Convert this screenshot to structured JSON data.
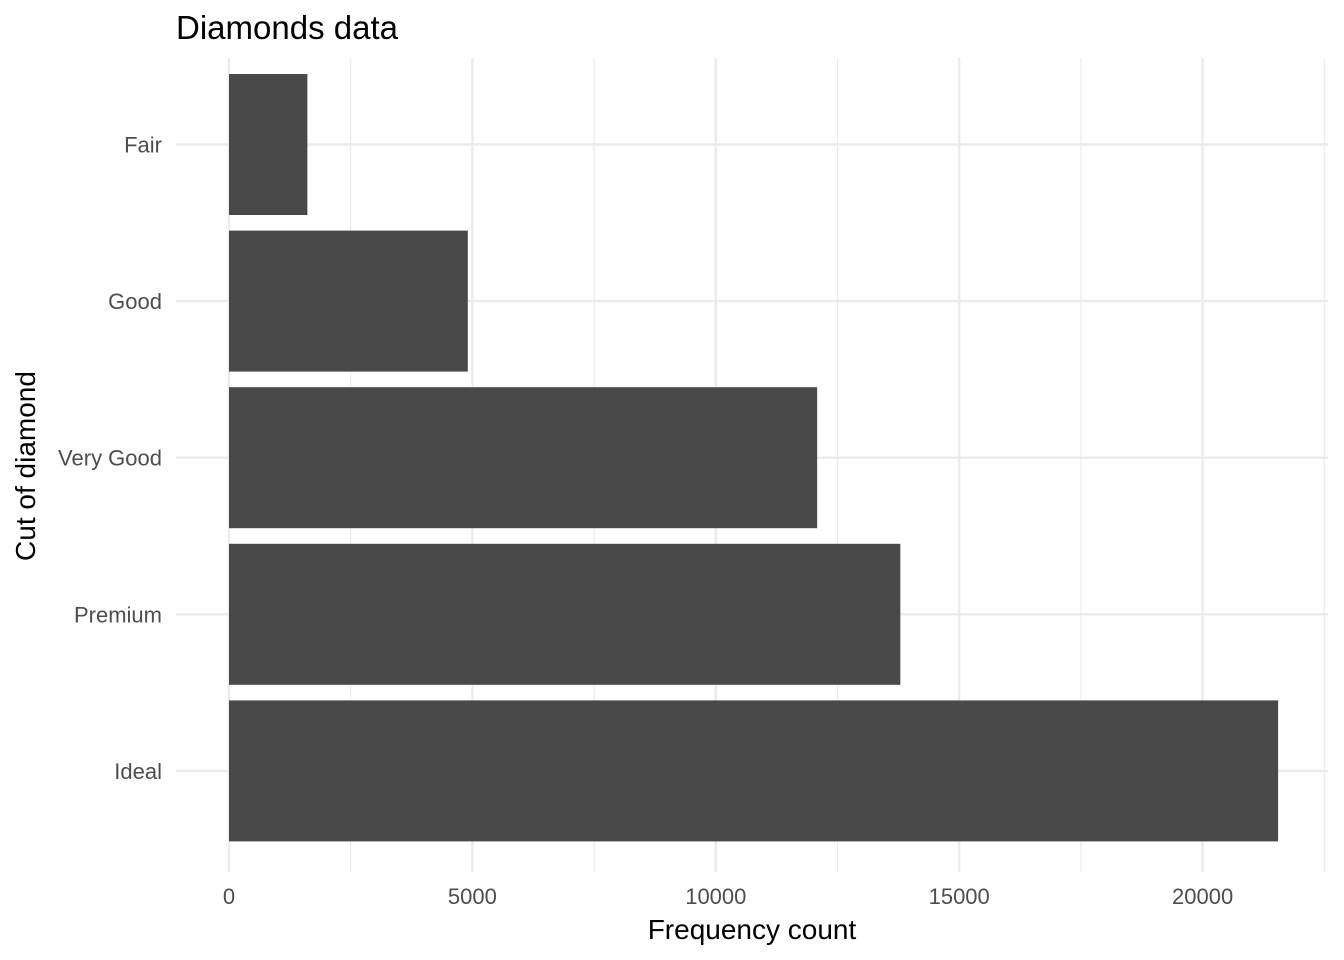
{
  "chart_data": {
    "type": "bar",
    "orientation": "horizontal",
    "title": "Diamonds data",
    "xlabel": "Frequency count",
    "ylabel": "Cut of diamond",
    "categories": [
      "Fair",
      "Good",
      "Very Good",
      "Premium",
      "Ideal"
    ],
    "values": [
      1610,
      4906,
      12082,
      13791,
      21551
    ],
    "xlim": [
      0,
      22600
    ],
    "x_ticks": [
      0,
      5000,
      10000,
      15000,
      20000
    ],
    "x_tick_labels": [
      "0",
      "5000",
      "10000",
      "15000",
      "20000"
    ],
    "grid": true,
    "bar_color": "#494949",
    "grid_color": "#ebebeb"
  }
}
